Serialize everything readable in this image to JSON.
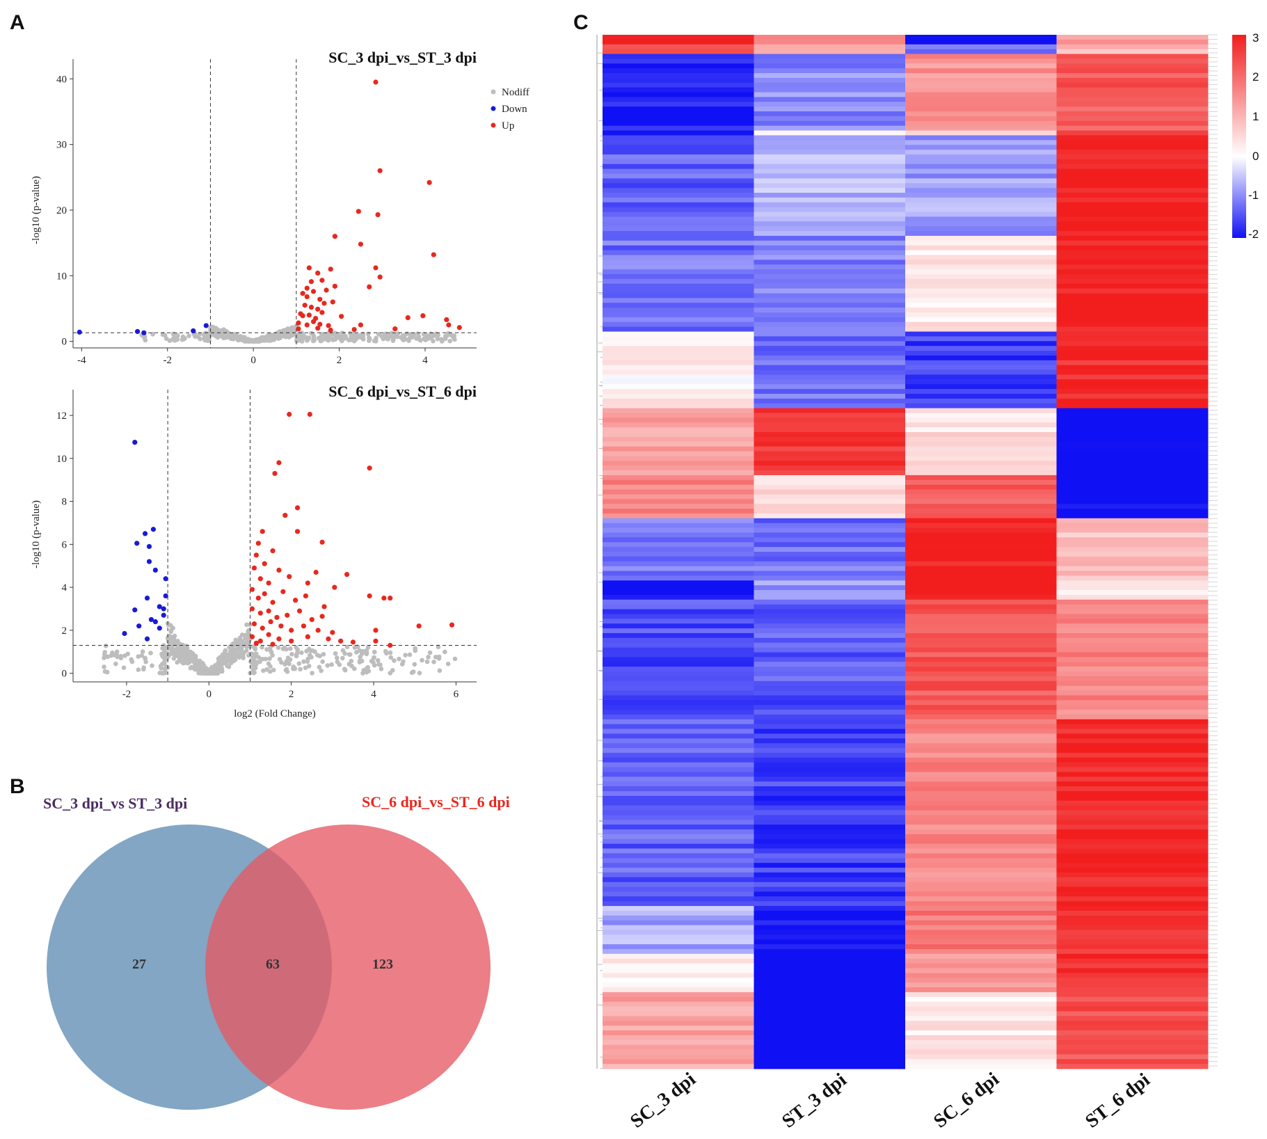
{
  "panels": {
    "a": "A",
    "b": "B",
    "c": "C"
  },
  "colors": {
    "nodiff": "#bdbdbd",
    "down": "#1a1ad6",
    "up": "#e8281e",
    "venn_left": "#5f8db3",
    "venn_right": "#e65a64",
    "venn_left_title": "#4b2b63",
    "venn_right_title": "#e8281e"
  },
  "chart_data": [
    {
      "type": "scatter",
      "title": "SC_3 dpi_vs_ST_3 dpi",
      "xlabel": "log2 (Fold Change)",
      "ylabel": "-log10 (p-value)",
      "xlim": [
        -4.2,
        5.2
      ],
      "ylim": [
        -1,
        43
      ],
      "xticks": [
        -4,
        -2,
        0,
        2,
        4
      ],
      "yticks": [
        0,
        10,
        20,
        30,
        40
      ],
      "thresholds": {
        "x": [
          -1,
          1
        ],
        "y": 1.3
      },
      "legend": {
        "position": "top-right",
        "entries": [
          "Nodiff",
          "Down",
          "Up"
        ]
      },
      "series": [
        {
          "name": "Down",
          "points": [
            [
              -4.05,
              1.4
            ],
            [
              -2.7,
              1.5
            ],
            [
              -2.55,
              1.3
            ],
            [
              -1.4,
              1.6
            ],
            [
              -1.1,
              2.4
            ]
          ]
        },
        {
          "name": "Up",
          "points": [
            [
              2.85,
              39.5
            ],
            [
              2.95,
              26
            ],
            [
              4.1,
              24.2
            ],
            [
              2.45,
              19.8
            ],
            [
              2.9,
              19.3
            ],
            [
              1.9,
              16
            ],
            [
              2.5,
              14.8
            ],
            [
              4.2,
              13.2
            ],
            [
              1.3,
              11.2
            ],
            [
              1.5,
              10.4
            ],
            [
              1.8,
              11
            ],
            [
              2.85,
              11.2
            ],
            [
              2.7,
              8.3
            ],
            [
              2.95,
              9.8
            ],
            [
              1.15,
              7.3
            ],
            [
              1.25,
              6.8
            ],
            [
              1.4,
              7.6
            ],
            [
              1.55,
              6.4
            ],
            [
              1.7,
              7.8
            ],
            [
              1.9,
              8.4
            ],
            [
              1.2,
              5.5
            ],
            [
              1.35,
              5.2
            ],
            [
              1.5,
              4.9
            ],
            [
              1.65,
              5.8
            ],
            [
              1.85,
              6
            ],
            [
              1.1,
              4.2
            ],
            [
              1.3,
              4
            ],
            [
              1.45,
              3.5
            ],
            [
              1.6,
              4.4
            ],
            [
              2.05,
              3.8
            ],
            [
              1.05,
              2.8
            ],
            [
              1.25,
              2.5
            ],
            [
              1.4,
              3
            ],
            [
              1.55,
              2.6
            ],
            [
              1.75,
              2.4
            ],
            [
              2.5,
              2.5
            ],
            [
              1.05,
              1.9
            ],
            [
              1.5,
              2
            ],
            [
              1.8,
              1.7
            ],
            [
              3.3,
              1.9
            ],
            [
              3.6,
              3.6
            ],
            [
              3.95,
              3.9
            ],
            [
              4.5,
              3.3
            ],
            [
              4.8,
              2.1
            ],
            [
              4.55,
              2.5
            ],
            [
              2.35,
              1.8
            ],
            [
              1.15,
              3.9
            ],
            [
              1.35,
              9.1
            ],
            [
              1.6,
              9.3
            ],
            [
              1.25,
              8.1
            ]
          ]
        }
      ]
    },
    {
      "type": "scatter",
      "title": "SC_6 dpi_vs_ST_6 dpi",
      "xlabel": "log2 (Fold Change)",
      "ylabel": "-log10 (p-value)",
      "xlim": [
        -3.3,
        6.5
      ],
      "ylim": [
        -0.4,
        13.2
      ],
      "xticks": [
        -2,
        0,
        2,
        4,
        6
      ],
      "yticks": [
        0,
        2,
        4,
        6,
        8,
        10,
        12
      ],
      "thresholds": {
        "x": [
          -1,
          1
        ],
        "y": 1.3
      },
      "series": [
        {
          "name": "Down",
          "points": [
            [
              -1.8,
              10.75
            ],
            [
              -1.75,
              6.05
            ],
            [
              -1.55,
              6.5
            ],
            [
              -1.35,
              6.7
            ],
            [
              -1.45,
              5.9
            ],
            [
              -1.45,
              5.2
            ],
            [
              -1.3,
              4.8
            ],
            [
              -1.05,
              4.4
            ],
            [
              -1.8,
              2.95
            ],
            [
              -1.5,
              3.5
            ],
            [
              -1.2,
              3.1
            ],
            [
              -1.05,
              3.6
            ],
            [
              -1.1,
              3.0
            ],
            [
              -1.4,
              2.5
            ],
            [
              -1.3,
              2.4
            ],
            [
              -1.7,
              2.2
            ],
            [
              -2.05,
              1.85
            ],
            [
              -1.2,
              2.1
            ],
            [
              -1.5,
              1.6
            ],
            [
              -1.1,
              2.7
            ]
          ]
        },
        {
          "name": "Up",
          "points": [
            [
              1.95,
              12.05
            ],
            [
              2.45,
              12.05
            ],
            [
              1.7,
              9.8
            ],
            [
              1.6,
              9.3
            ],
            [
              3.9,
              9.55
            ],
            [
              2.15,
              7.7
            ],
            [
              1.85,
              7.35
            ],
            [
              2.75,
              6.1
            ],
            [
              1.3,
              6.6
            ],
            [
              1.2,
              6.05
            ],
            [
              1.15,
              5.5
            ],
            [
              1.35,
              5.1
            ],
            [
              1.55,
              5.7
            ],
            [
              2.15,
              6.6
            ],
            [
              3.35,
              4.6
            ],
            [
              1.1,
              4.9
            ],
            [
              1.25,
              4.4
            ],
            [
              1.45,
              4.2
            ],
            [
              1.7,
              4.8
            ],
            [
              1.95,
              4.5
            ],
            [
              2.4,
              4.2
            ],
            [
              2.6,
              4.7
            ],
            [
              3.05,
              4.0
            ],
            [
              1.05,
              3.9
            ],
            [
              1.2,
              3.5
            ],
            [
              1.35,
              3.7
            ],
            [
              1.55,
              3.3
            ],
            [
              1.8,
              3.8
            ],
            [
              2.1,
              3.4
            ],
            [
              2.35,
              3.6
            ],
            [
              2.8,
              3.1
            ],
            [
              3.9,
              3.6
            ],
            [
              4.25,
              3.5
            ],
            [
              4.4,
              3.5
            ],
            [
              1.05,
              3.0
            ],
            [
              1.25,
              2.8
            ],
            [
              1.45,
              2.9
            ],
            [
              1.65,
              2.6
            ],
            [
              1.9,
              2.7
            ],
            [
              2.2,
              2.9
            ],
            [
              2.5,
              2.5
            ],
            [
              1.1,
              2.3
            ],
            [
              1.3,
              2.1
            ],
            [
              1.5,
              2.4
            ],
            [
              1.75,
              2.2
            ],
            [
              2.0,
              2.0
            ],
            [
              2.3,
              2.2
            ],
            [
              2.65,
              2.0
            ],
            [
              1.05,
              1.7
            ],
            [
              1.25,
              1.5
            ],
            [
              1.45,
              1.8
            ],
            [
              1.7,
              1.6
            ],
            [
              2.0,
              1.5
            ],
            [
              2.4,
              1.7
            ],
            [
              2.9,
              1.6
            ],
            [
              3.2,
              1.5
            ],
            [
              3.5,
              1.45
            ],
            [
              5.1,
              2.2
            ],
            [
              5.9,
              2.25
            ],
            [
              4.05,
              2.0
            ],
            [
              4.05,
              1.5
            ],
            [
              4.4,
              1.3
            ],
            [
              3.0,
              1.9
            ],
            [
              1.15,
              1.4
            ],
            [
              1.55,
              1.35
            ],
            [
              2.75,
              2.65
            ]
          ]
        }
      ]
    },
    {
      "type": "venn",
      "sets": [
        {
          "name": "SC_3 dpi_vs ST_3 dpi",
          "only": "27"
        },
        {
          "name": "SC_6 dpi_vs_ST_6 dpi",
          "only": "123"
        }
      ],
      "intersection": "63"
    },
    {
      "type": "heatmap",
      "columns": [
        "SC_3 dpi",
        "ST_3 dpi",
        "SC_6 dpi",
        "ST_6 dpi"
      ],
      "colorbar": {
        "ticks": [
          "3",
          "2",
          "1",
          "0",
          "-1",
          "-2"
        ],
        "range": [
          -2,
          3
        ]
      },
      "blocks": [
        {
          "rows": 2,
          "values": [
            3,
            1.5,
            -2.5,
            1.2
          ]
        },
        {
          "rows": 2,
          "values": [
            2.2,
            1.0,
            -1.0,
            1.0
          ]
        },
        {
          "rows": 16,
          "values": [
            -1.9,
            -1.0,
            1.4,
            2.2
          ]
        },
        {
          "rows": 1,
          "values": [
            -2.0,
            -0.2,
            0.6,
            2.8
          ]
        },
        {
          "rows": 21,
          "values": [
            -1.3,
            -0.6,
            -0.8,
            3.0
          ]
        },
        {
          "rows": 20,
          "values": [
            -1.2,
            -1.0,
            0.3,
            3.0
          ]
        },
        {
          "rows": 16,
          "values": [
            0.2,
            -1.2,
            -1.6,
            2.8
          ]
        },
        {
          "rows": 14,
          "values": [
            1.2,
            2.6,
            0.4,
            -2.3
          ]
        },
        {
          "rows": 9,
          "values": [
            1.6,
            0.4,
            2.1,
            -2.2
          ]
        },
        {
          "rows": 13,
          "values": [
            -1.1,
            -1.2,
            3.0,
            0.8
          ]
        },
        {
          "rows": 4,
          "values": [
            -2.0,
            -0.8,
            3.0,
            0.3
          ]
        },
        {
          "rows": 25,
          "values": [
            -1.5,
            -1.4,
            2.2,
            1.6
          ]
        },
        {
          "rows": 39,
          "values": [
            -1.3,
            -1.6,
            1.6,
            2.9
          ]
        },
        {
          "rows": 10,
          "values": [
            -0.7,
            -2.0,
            1.8,
            2.6
          ]
        },
        {
          "rows": 8,
          "values": [
            0.3,
            -2.4,
            1.4,
            2.8
          ]
        },
        {
          "rows": 16,
          "values": [
            1.2,
            -2.4,
            0.3,
            2.3
          ]
        }
      ]
    }
  ]
}
